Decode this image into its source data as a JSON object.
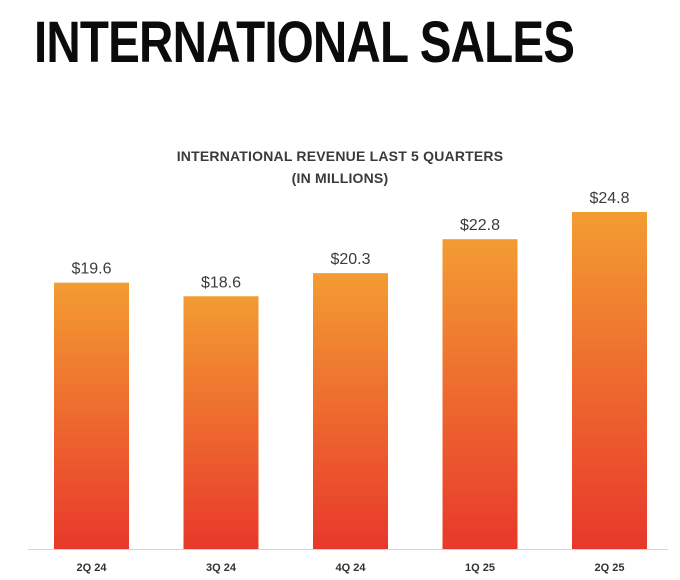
{
  "page": {
    "title": "INTERNATIONAL SALES"
  },
  "chart_data": {
    "type": "bar",
    "title": "INTERNATIONAL REVENUE LAST 5 QUARTERS",
    "subtitle": "(IN MILLIONS)",
    "categories": [
      "2Q 24",
      "3Q 24",
      "4Q 24",
      "1Q 25",
      "2Q 25"
    ],
    "values": [
      19.6,
      18.6,
      20.3,
      22.8,
      24.8
    ],
    "data_labels": [
      "$19.6",
      "$18.6",
      "$20.3",
      "$22.8",
      "$24.8"
    ],
    "xlabel": "",
    "ylabel": "",
    "ylim": [
      0,
      24.8
    ],
    "grid": false,
    "legend": "none",
    "colors": {
      "bar_top": "#f39c32",
      "bar_bottom": "#e8382b",
      "axis": "#d4d4d4"
    }
  }
}
